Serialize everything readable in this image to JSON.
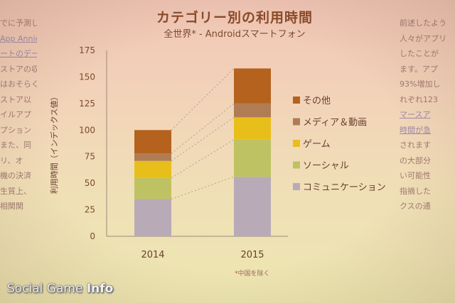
{
  "slide": {
    "title": "カテゴリー別の利用時間",
    "subtitle": "全世界* - Androidスマートフォン",
    "note": "*中国を除く",
    "brand_main": "Social Game",
    "brand_accent": "Info",
    "left_text": [
      "でに予測し",
      "App Annie",
      "ートのデー",
      "ストアの収",
      "はおそらく",
      "ストア以",
      "イルアプ",
      "プション",
      "また、同",
      "リ、オ",
      "機の決済",
      "生質上、",
      "相関関"
    ],
    "right_text": [
      "前述したよう",
      "人々がアプリ",
      "したことが",
      "ます。アプ",
      "93%増加し",
      "れぞれ123",
      "マースア",
      "時間が急",
      "されます",
      "の大部分",
      "い可能性",
      "指摘した",
      "クスの通"
    ]
  },
  "chart_data": {
    "type": "bar",
    "stacked": true,
    "categories": [
      "2014",
      "2015"
    ],
    "ylabel": "利用時間（インデックス値）",
    "ylim": [
      0,
      175
    ],
    "yticks": [
      0,
      25,
      50,
      75,
      100,
      125,
      150,
      175
    ],
    "series": [
      {
        "name": "コミュニケーション",
        "color": "#b9aab8",
        "values": [
          35,
          56
        ]
      },
      {
        "name": "ソーシャル",
        "color": "#bfc262",
        "values": [
          20,
          35
        ]
      },
      {
        "name": "ゲーム",
        "color": "#e8bf1a",
        "values": [
          16,
          21
        ]
      },
      {
        "name": "メディア＆動画",
        "color": "#b07c54",
        "values": [
          7,
          13
        ]
      },
      {
        "name": "その他",
        "color": "#b5621e",
        "values": [
          22,
          33
        ]
      }
    ],
    "grid": false,
    "legend_position": "right"
  }
}
